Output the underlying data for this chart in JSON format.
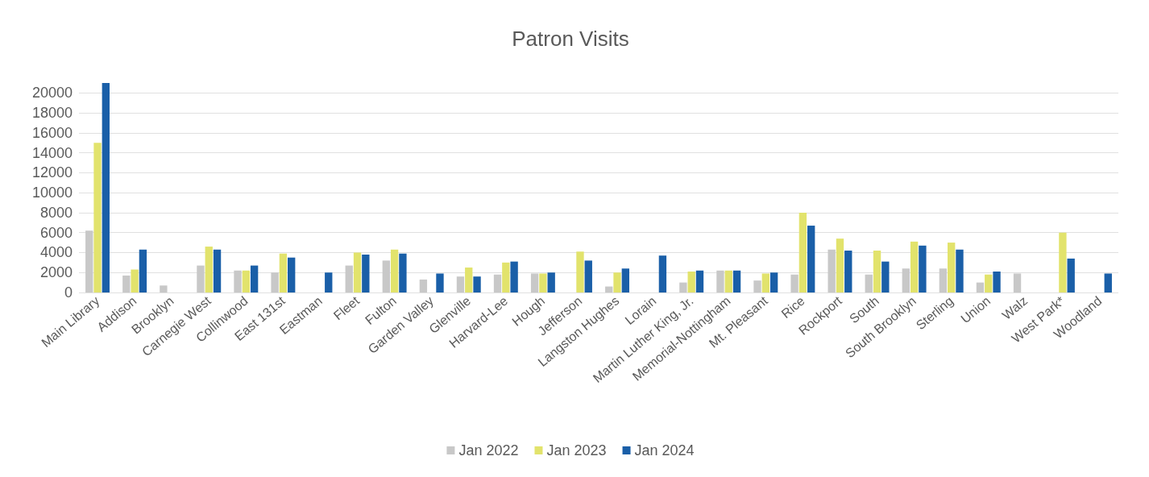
{
  "chart_data": {
    "type": "bar",
    "title": "Patron Visits",
    "categories": [
      "Main Library",
      "Addison",
      "Brooklyn",
      "Carnegie West",
      "Collinwood",
      "East 131st",
      "Eastman",
      "Fleet",
      "Fulton",
      "Garden Valley",
      "Glenville",
      "Harvard-Lee",
      "Hough",
      "Jefferson",
      "Langston Hughes",
      "Lorain",
      "Martin Luther King, Jr.",
      "Memorial-Nottingham",
      "Mt. Pleasant",
      "Rice",
      "Rockport",
      "South",
      "South Brooklyn",
      "Sterling",
      "Union",
      "Walz",
      "West Park*",
      "Woodland"
    ],
    "series": [
      {
        "name": "Jan 2022",
        "color": "#c8c8c8",
        "values": [
          6200,
          1700,
          700,
          2700,
          2200,
          2000,
          null,
          2700,
          3200,
          1300,
          1600,
          1800,
          1900,
          null,
          600,
          null,
          1000,
          2200,
          1200,
          1800,
          4300,
          1800,
          2400,
          2400,
          1000,
          1900,
          null,
          null
        ]
      },
      {
        "name": "Jan 2023",
        "color": "#e2e36c",
        "values": [
          15000,
          2300,
          null,
          4600,
          2200,
          3900,
          null,
          4000,
          4300,
          null,
          2500,
          3000,
          1900,
          4100,
          2000,
          null,
          2100,
          2200,
          1900,
          8000,
          5400,
          4200,
          5100,
          5000,
          1800,
          null,
          6000,
          null
        ]
      },
      {
        "name": "Jan 2024",
        "color": "#1a5fa8",
        "values": [
          21000,
          4300,
          null,
          4300,
          2700,
          3500,
          2000,
          3800,
          3900,
          1900,
          1600,
          3100,
          2000,
          3200,
          2400,
          3700,
          2200,
          2200,
          2000,
          6700,
          4200,
          3100,
          4700,
          4300,
          2100,
          null,
          3400,
          1900
        ]
      }
    ],
    "ylim": [
      0,
      21000
    ],
    "yticks": [
      0,
      2000,
      4000,
      6000,
      8000,
      10000,
      12000,
      14000,
      16000,
      18000,
      20000
    ],
    "grid": "y",
    "legend": "bottom"
  }
}
